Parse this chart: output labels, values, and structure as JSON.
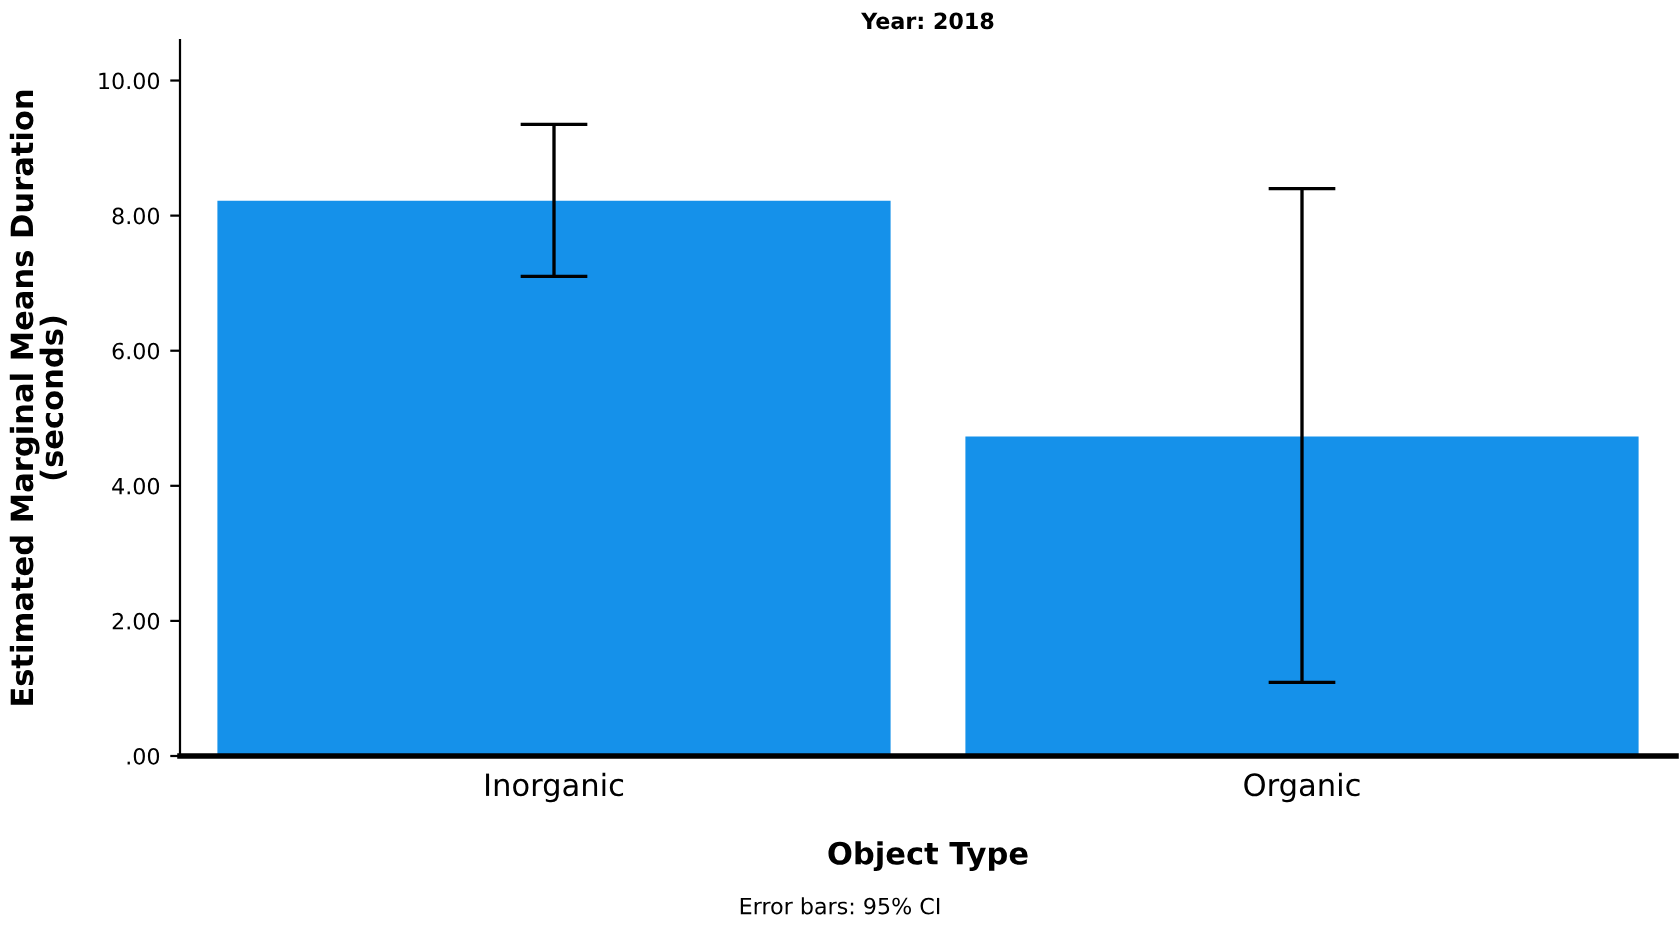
{
  "chart_data": {
    "type": "bar",
    "title": "Year: 2018",
    "xlabel": "Object Type",
    "ylabel": "Estimated Marginal Means Duration\n(seconds)",
    "categories": [
      "Inorganic",
      "Organic"
    ],
    "values": [
      8.22,
      4.73
    ],
    "errors": [
      [
        7.1,
        9.35
      ],
      [
        1.09,
        8.4
      ]
    ],
    "color": "#1591ea",
    "ylim": [
      0,
      10.6
    ],
    "yticks": [
      {
        "value": 0,
        "label": ".00"
      },
      {
        "value": 2,
        "label": "2.00"
      },
      {
        "value": 4,
        "label": "4.00"
      },
      {
        "value": 6,
        "label": "6.00"
      },
      {
        "value": 8,
        "label": "8.00"
      },
      {
        "value": 10,
        "label": "10.00"
      }
    ],
    "grid": false,
    "annotations": [
      "Error bars: 95% CI"
    ]
  }
}
